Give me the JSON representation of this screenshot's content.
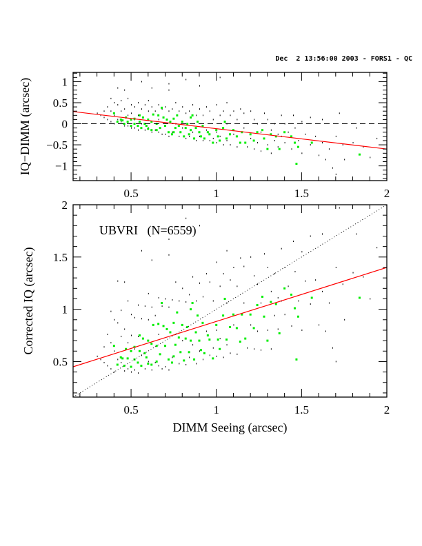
{
  "header": "Dec  2 13:56:00 2003 - FORS1 - QC",
  "colors": {
    "all": "#000000",
    "highlight": "#00ee00",
    "fit": "#ff0000",
    "axes": "#000000"
  },
  "chart_data": [
    {
      "type": "scatter",
      "panel": "top",
      "ylabel": "IQ−DIMM (arcsec)",
      "xlim": [
        0.16,
        2.0
      ],
      "ylim": [
        -1.35,
        1.22
      ],
      "xticks": [
        "0.5",
        "1",
        "1.5",
        "2"
      ],
      "yticks": [
        "−1",
        "−0.5",
        "0",
        "0.5",
        "1"
      ],
      "ytick_values": [
        -1,
        -0.5,
        0,
        0.5,
        1
      ],
      "xtick_values": [
        0.5,
        1,
        1.5,
        2
      ],
      "reference_line": {
        "style": "dashed",
        "y": 0
      },
      "fit_line": {
        "x": [
          0.16,
          2.0
        ],
        "y": [
          0.29,
          -0.6
        ]
      },
      "grid": false
    },
    {
      "type": "scatter",
      "panel": "bottom",
      "xlabel": "DIMM Seeing (arcsec)",
      "ylabel": "Corrected IQ (arcsec)",
      "annotation": "UBVRI   (N=6559)",
      "xlim": [
        0.16,
        2.0
      ],
      "ylim": [
        0.16,
        2.0
      ],
      "xticks": [
        "0.5",
        "1",
        "1.5",
        "2"
      ],
      "yticks": [
        "0.5",
        "1",
        "1.5",
        "2"
      ],
      "xtick_values": [
        0.5,
        1,
        1.5,
        2
      ],
      "ytick_values": [
        0.5,
        1,
        1.5,
        2
      ],
      "reference_line": {
        "style": "dotted",
        "slope": 1,
        "intercept": 0
      },
      "fit_line": {
        "x": [
          0.16,
          2.0
        ],
        "y": [
          0.45,
          1.4
        ]
      },
      "grid": false
    }
  ],
  "points": {
    "note_columns": [
      "DIMM Seeing",
      "IQ−DIMM"
    ],
    "all": [
      [
        0.3,
        0.25
      ],
      [
        0.32,
        0.2
      ],
      [
        0.34,
        0.3
      ],
      [
        0.34,
        0.15
      ],
      [
        0.36,
        0.4
      ],
      [
        0.36,
        0.1
      ],
      [
        0.38,
        0.6
      ],
      [
        0.38,
        0.3
      ],
      [
        0.38,
        0.05
      ],
      [
        0.4,
        0.5
      ],
      [
        0.4,
        0.2
      ],
      [
        0.4,
        0.0
      ],
      [
        0.42,
        0.85
      ],
      [
        0.42,
        0.45
      ],
      [
        0.42,
        0.1
      ],
      [
        0.44,
        0.55
      ],
      [
        0.44,
        0.3
      ],
      [
        0.44,
        0.05
      ],
      [
        0.46,
        0.8
      ],
      [
        0.46,
        0.35
      ],
      [
        0.46,
        -0.05
      ],
      [
        0.48,
        0.6
      ],
      [
        0.48,
        0.2
      ],
      [
        0.48,
        -0.05
      ],
      [
        0.5,
        0.45
      ],
      [
        0.5,
        0.25
      ],
      [
        0.5,
        -0.1
      ],
      [
        0.52,
        0.4
      ],
      [
        0.52,
        0.1
      ],
      [
        0.52,
        -0.1
      ],
      [
        0.54,
        0.5
      ],
      [
        0.54,
        0.2
      ],
      [
        0.54,
        -0.15
      ],
      [
        0.56,
        1.0
      ],
      [
        0.56,
        0.35
      ],
      [
        0.56,
        0.0
      ],
      [
        0.58,
        0.45
      ],
      [
        0.58,
        -0.15
      ],
      [
        0.6,
        0.55
      ],
      [
        0.6,
        0.3
      ],
      [
        0.6,
        -0.1
      ],
      [
        0.62,
        0.85
      ],
      [
        0.62,
        0.4
      ],
      [
        0.62,
        -0.2
      ],
      [
        0.64,
        0.3
      ],
      [
        0.64,
        -0.15
      ],
      [
        0.66,
        0.45
      ],
      [
        0.66,
        0.1
      ],
      [
        0.66,
        -0.2
      ],
      [
        0.68,
        0.35
      ],
      [
        0.68,
        -0.25
      ],
      [
        0.7,
        0.4
      ],
      [
        0.7,
        -0.05
      ],
      [
        0.7,
        -0.25
      ],
      [
        0.72,
        0.95
      ],
      [
        0.72,
        0.8
      ],
      [
        0.72,
        0.3
      ],
      [
        0.72,
        -0.3
      ],
      [
        0.74,
        0.35
      ],
      [
        0.74,
        -0.2
      ],
      [
        0.76,
        0.5
      ],
      [
        0.76,
        0.0
      ],
      [
        0.78,
        0.3
      ],
      [
        0.78,
        -0.3
      ],
      [
        0.8,
        0.4
      ],
      [
        0.8,
        -0.1
      ],
      [
        0.82,
        1.05
      ],
      [
        0.82,
        0.25
      ],
      [
        0.82,
        -0.35
      ],
      [
        0.84,
        0.3
      ],
      [
        0.84,
        -0.3
      ],
      [
        0.86,
        0.45
      ],
      [
        0.86,
        -0.2
      ],
      [
        0.88,
        0.2
      ],
      [
        0.88,
        -0.4
      ],
      [
        0.9,
        0.35
      ],
      [
        0.9,
        0.9
      ],
      [
        0.9,
        -0.3
      ],
      [
        0.92,
        0.2
      ],
      [
        0.92,
        -0.4
      ],
      [
        0.94,
        0.4
      ],
      [
        0.94,
        -0.15
      ],
      [
        0.96,
        0.3
      ],
      [
        0.96,
        -0.4
      ],
      [
        0.98,
        0.1
      ],
      [
        0.98,
        -0.35
      ],
      [
        1.0,
        0.45
      ],
      [
        1.0,
        -0.2
      ],
      [
        1.0,
        -0.45
      ],
      [
        1.02,
        1.1
      ],
      [
        1.02,
        0.2
      ],
      [
        1.02,
        -0.3
      ],
      [
        1.04,
        0.3
      ],
      [
        1.04,
        -0.5
      ],
      [
        1.06,
        0.5
      ],
      [
        1.06,
        0.0
      ],
      [
        1.06,
        -0.4
      ],
      [
        1.08,
        0.2
      ],
      [
        1.08,
        -0.5
      ],
      [
        1.1,
        0.3
      ],
      [
        1.1,
        -0.25
      ],
      [
        1.12,
        0.1
      ],
      [
        1.12,
        -0.55
      ],
      [
        1.14,
        0.35
      ],
      [
        1.14,
        -0.45
      ],
      [
        1.16,
        0.25
      ],
      [
        1.16,
        -0.1
      ],
      [
        1.18,
        -0.55
      ],
      [
        1.2,
        0.3
      ],
      [
        1.2,
        -0.35
      ],
      [
        1.22,
        0.1
      ],
      [
        1.22,
        -0.6
      ],
      [
        1.24,
        0.0
      ],
      [
        1.24,
        -0.45
      ],
      [
        1.26,
        -0.2
      ],
      [
        1.26,
        -0.65
      ],
      [
        1.28,
        0.25
      ],
      [
        1.28,
        -0.35
      ],
      [
        1.3,
        0.1
      ],
      [
        1.3,
        -0.5
      ],
      [
        1.32,
        -0.15
      ],
      [
        1.32,
        -0.7
      ],
      [
        1.34,
        0.0
      ],
      [
        1.34,
        -0.4
      ],
      [
        1.36,
        -0.25
      ],
      [
        1.36,
        -0.55
      ],
      [
        1.38,
        0.2
      ],
      [
        1.38,
        -0.3
      ],
      [
        1.4,
        0.0
      ],
      [
        1.4,
        -0.45
      ],
      [
        1.42,
        -0.2
      ],
      [
        1.44,
        -0.6
      ],
      [
        1.45,
        0.2
      ],
      [
        1.46,
        -0.1
      ],
      [
        1.48,
        -0.4
      ],
      [
        1.5,
        0.05
      ],
      [
        1.5,
        -0.7
      ],
      [
        1.52,
        -0.25
      ],
      [
        1.55,
        0.15
      ],
      [
        1.55,
        -0.5
      ],
      [
        1.58,
        -0.3
      ],
      [
        1.6,
        -0.75
      ],
      [
        1.62,
        0.1
      ],
      [
        1.62,
        -0.45
      ],
      [
        1.64,
        -0.85
      ],
      [
        1.66,
        -0.6
      ],
      [
        1.68,
        -1.05
      ],
      [
        1.7,
        -0.3
      ],
      [
        1.72,
        0.25
      ],
      [
        1.74,
        -0.5
      ],
      [
        1.75,
        -0.85
      ],
      [
        1.8,
        -0.45
      ],
      [
        1.82,
        -0.1
      ],
      [
        1.86,
        -0.55
      ],
      [
        1.9,
        -0.8
      ],
      [
        1.94,
        -0.35
      ],
      [
        1.7,
        -1.2
      ]
    ],
    "highlighted": [
      [
        0.4,
        0.25
      ],
      [
        0.42,
        0.05
      ],
      [
        0.44,
        0.1
      ],
      [
        0.46,
        0.0
      ],
      [
        0.47,
        0.15
      ],
      [
        0.48,
        0.05
      ],
      [
        0.5,
        0.1
      ],
      [
        0.5,
        -0.05
      ],
      [
        0.52,
        0.0
      ],
      [
        0.52,
        0.12
      ],
      [
        0.54,
        -0.05
      ],
      [
        0.55,
        0.05
      ],
      [
        0.56,
        -0.1
      ],
      [
        0.57,
        0.15
      ],
      [
        0.58,
        0.0
      ],
      [
        0.59,
        -0.05
      ],
      [
        0.6,
        0.1
      ],
      [
        0.6,
        -0.12
      ],
      [
        0.62,
        0.05
      ],
      [
        0.62,
        -0.15
      ],
      [
        0.63,
        0.22
      ],
      [
        0.65,
        0.0
      ],
      [
        0.66,
        0.2
      ],
      [
        0.67,
        -0.1
      ],
      [
        0.68,
        0.38
      ],
      [
        0.69,
        0.15
      ],
      [
        0.7,
        -0.05
      ],
      [
        0.71,
        0.1
      ],
      [
        0.72,
        -0.2
      ],
      [
        0.73,
        0.05
      ],
      [
        0.74,
        -0.25
      ],
      [
        0.75,
        0.12
      ],
      [
        0.76,
        -0.1
      ],
      [
        0.77,
        0.2
      ],
      [
        0.78,
        -0.05
      ],
      [
        0.79,
        -0.2
      ],
      [
        0.8,
        0.05
      ],
      [
        0.81,
        -0.3
      ],
      [
        0.82,
        -0.1
      ],
      [
        0.83,
        0.0
      ],
      [
        0.84,
        -0.25
      ],
      [
        0.85,
        -0.15
      ],
      [
        0.86,
        0.2
      ],
      [
        0.87,
        -0.35
      ],
      [
        0.88,
        -0.1
      ],
      [
        0.89,
        0.05
      ],
      [
        0.9,
        -0.2
      ],
      [
        0.91,
        -0.3
      ],
      [
        0.92,
        -0.05
      ],
      [
        0.93,
        -0.35
      ],
      [
        0.95,
        -0.2
      ],
      [
        0.96,
        -0.25
      ],
      [
        0.98,
        -0.45
      ],
      [
        1.0,
        -0.15
      ],
      [
        1.01,
        -0.3
      ],
      [
        1.02,
        -0.4
      ],
      [
        1.04,
        -0.1
      ],
      [
        1.05,
        0.05
      ],
      [
        1.06,
        -0.35
      ],
      [
        1.08,
        -0.25
      ],
      [
        1.1,
        -0.15
      ],
      [
        1.12,
        -0.3
      ],
      [
        1.14,
        -0.45
      ],
      [
        1.15,
        -0.2
      ],
      [
        1.17,
        -0.45
      ],
      [
        1.2,
        -0.25
      ],
      [
        1.22,
        -0.4
      ],
      [
        1.24,
        -0.2
      ],
      [
        1.27,
        -0.15
      ],
      [
        1.28,
        -0.35
      ],
      [
        1.3,
        -0.6
      ],
      [
        1.32,
        -0.25
      ],
      [
        1.35,
        -0.3
      ],
      [
        1.37,
        -0.6
      ],
      [
        1.4,
        -0.2
      ],
      [
        1.44,
        -0.3
      ],
      [
        1.46,
        -0.45
      ],
      [
        1.47,
        -0.95
      ],
      [
        1.48,
        -0.55
      ],
      [
        1.56,
        -0.45
      ],
      [
        1.84,
        -0.73
      ],
      [
        0.45,
        0.08
      ],
      [
        0.55,
        0.2
      ],
      [
        0.65,
        -0.15
      ],
      [
        0.75,
        -0.2
      ],
      [
        0.85,
        0.15
      ]
    ]
  }
}
